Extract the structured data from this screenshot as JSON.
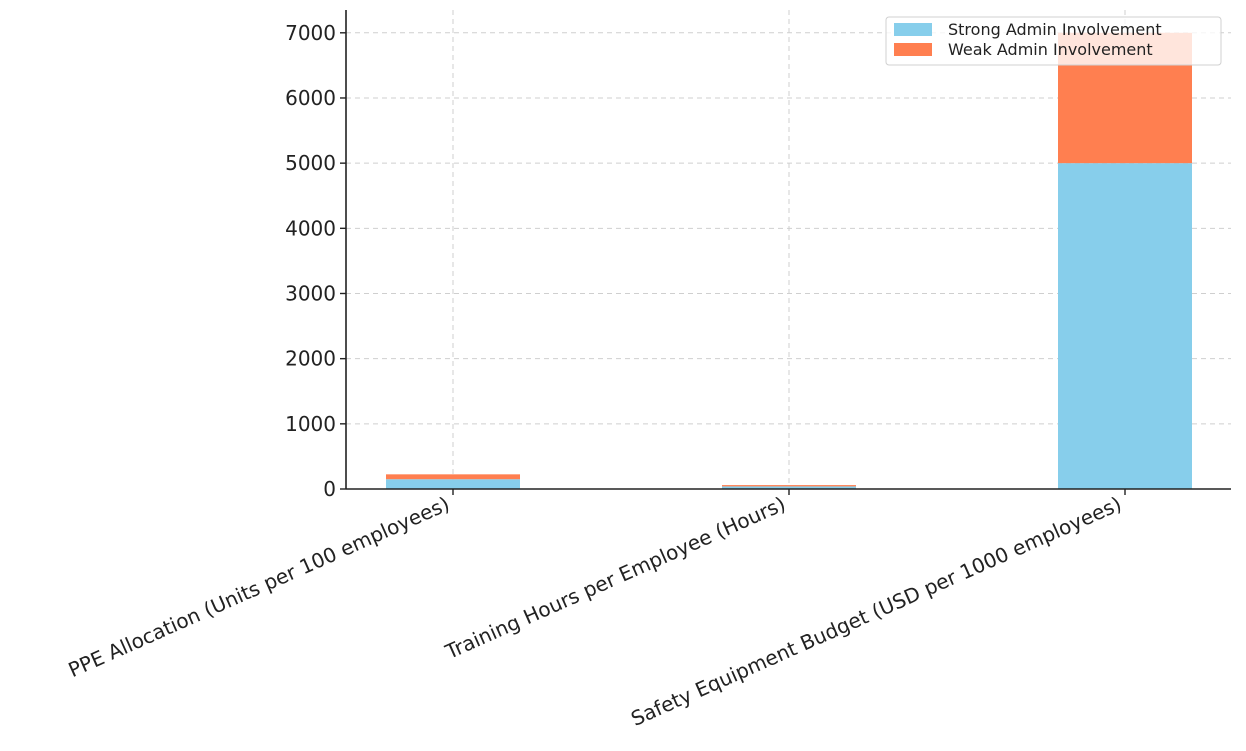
{
  "chart_data": {
    "type": "bar",
    "stacked": true,
    "title": "",
    "xlabel": "",
    "ylabel": "",
    "categories": [
      "PPE Allocation (Units per 100 employees)",
      "Training Hours per Employee (Hours)",
      "Safety Equipment Budget (USD per 1000 employees)"
    ],
    "series": [
      {
        "name": "Strong Admin Involvement",
        "values": [
          150,
          40,
          5000
        ],
        "color": "#87CEEB"
      },
      {
        "name": "Weak Admin Involvement",
        "values": [
          75,
          20,
          2000
        ],
        "color": "#FF7F50"
      }
    ],
    "ylim": [
      0,
      7350
    ],
    "yticks": [
      "0",
      "1000",
      "2000",
      "3000",
      "4000",
      "5000",
      "6000",
      "7000"
    ],
    "grid": true,
    "legend_position": "top-right"
  }
}
